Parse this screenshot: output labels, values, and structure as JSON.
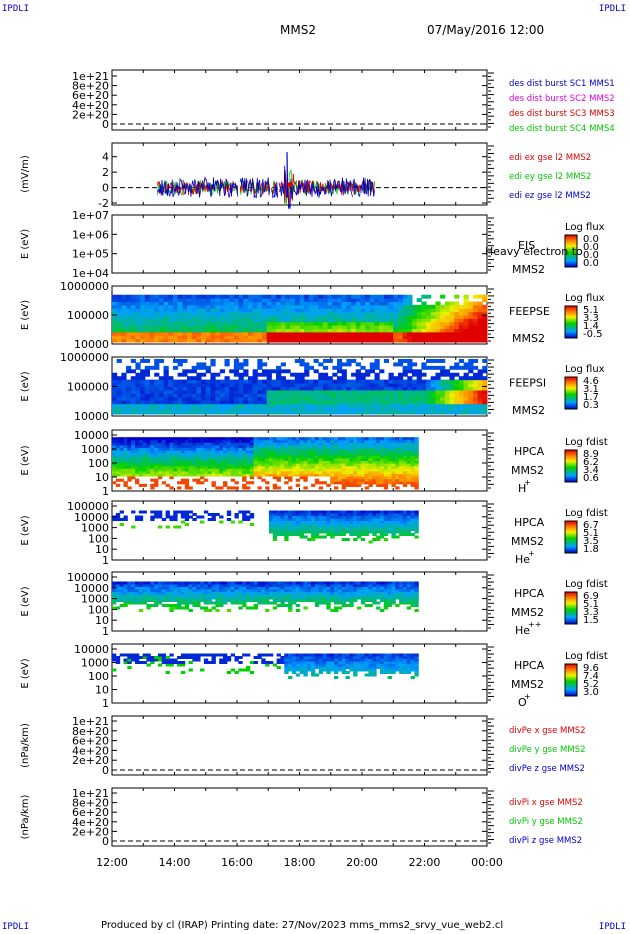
{
  "corners": {
    "tl": "IPDLI",
    "tr": "IPDLI",
    "bl": "IPDLI",
    "br": "IPDLI"
  },
  "header": {
    "mission": "MMS2",
    "date": "07/May/2016 12:00"
  },
  "footer": {
    "text": "Produced by cl (IRAP)   Printing date: 27/Nov/2023   mms_mms2_srvy_vue_web2.cl"
  },
  "colors": {
    "red": "#e00000",
    "green": "#00c800",
    "blue": "#0000c8",
    "magenta": "#e000e0",
    "fg": "#000000"
  },
  "time_axis": {
    "start": "12:00",
    "end": "00:00",
    "ticks": [
      "12:00",
      "14:00",
      "16:00",
      "18:00",
      "20:00",
      "22:00",
      "00:00"
    ]
  },
  "chart_data": [
    {
      "type": "line",
      "ylabel": "",
      "ylim": [
        -2e+20,
        1.2e+21
      ],
      "ticks": [
        "1e+21",
        "8e+20",
        "6e+20",
        "4e+20",
        "2e+20",
        "0"
      ],
      "legend": [
        {
          "text": "des dist burst SC1 MMS1",
          "color": "#0000c8"
        },
        {
          "text": "des dist burst SC2 MMS2",
          "color": "#e000e0"
        },
        {
          "text": "des dist burst SC3 MMS3",
          "color": "#e00000"
        },
        {
          "text": "des dist burst SC4 MMS4",
          "color": "#00c800"
        }
      ],
      "series": [],
      "zero_line": "dashed"
    },
    {
      "type": "line",
      "ylabel": "(mV/m)",
      "ylim": [
        -2,
        5
      ],
      "ticks": [
        "4",
        "2",
        "0",
        "-2"
      ],
      "legend": [
        {
          "text": "edi ex gse l2 MMS2",
          "color": "#e00000"
        },
        {
          "text": "edi ey gse l2 MMS2",
          "color": "#00c800"
        },
        {
          "text": "edi ez gse l2 MMS2",
          "color": "#0000c8"
        }
      ],
      "data_intervals_hours": [
        [
          13.4,
          17.1
        ],
        [
          17.0,
          20.4
        ]
      ],
      "zero_line": "dashed"
    },
    {
      "type": "heatmap",
      "ylabel": "E (eV)",
      "scale": "log",
      "ticks": [
        "1e+07",
        "1e+06",
        "1e+05",
        "1e+04"
      ],
      "right_labels": [
        "EIS",
        "MMS2"
      ],
      "overlap_text": "Heavy electron to",
      "colorbar": {
        "title": "Log flux",
        "ticks": [
          "0.0",
          "0.0",
          "0.0",
          "0.0"
        ]
      }
    },
    {
      "type": "heatmap",
      "ylabel": "E (eV)",
      "scale": "log",
      "ticks": [
        "1000000",
        "100000",
        "10000"
      ],
      "right_labels": [
        "FEEPSE",
        "MMS2"
      ],
      "colorbar": {
        "title": "Log flux",
        "ticks": [
          "5.1",
          "3.3",
          "1.4",
          "-0.5"
        ]
      }
    },
    {
      "type": "heatmap",
      "ylabel": "E (eV)",
      "scale": "log",
      "ticks": [
        "1000000",
        "100000",
        "10000"
      ],
      "right_labels": [
        "FEEPSI",
        "MMS2"
      ],
      "colorbar": {
        "title": "Log flux",
        "ticks": [
          "4.6",
          "3.1",
          "1.7",
          "0.3"
        ]
      }
    },
    {
      "type": "heatmap",
      "ylabel": "E (eV)",
      "scale": "log",
      "ticks": [
        "10000",
        "1000",
        "100",
        "10",
        "1"
      ],
      "right_labels": [
        "HPCA",
        "MMS2",
        "H",
        "+"
      ],
      "colorbar": {
        "title": "Log fdist",
        "ticks": [
          "8.9",
          "6.2",
          "3.4",
          "0.6"
        ]
      }
    },
    {
      "type": "heatmap",
      "ylabel": "E (eV)",
      "scale": "log",
      "ticks": [
        "100000",
        "10000",
        "1000",
        "100",
        "10",
        "1"
      ],
      "right_labels": [
        "HPCA",
        "MMS2",
        "He",
        "+"
      ],
      "colorbar": {
        "title": "Log fdist",
        "ticks": [
          "6.7",
          "5.1",
          "3.5",
          "1.8"
        ]
      }
    },
    {
      "type": "heatmap",
      "ylabel": "E (eV)",
      "scale": "log",
      "ticks": [
        "100000",
        "10000",
        "1000",
        "100",
        "10",
        "1"
      ],
      "right_labels": [
        "HPCA",
        "MMS2",
        "He",
        "++"
      ],
      "colorbar": {
        "title": "Log fdist",
        "ticks": [
          "6.9",
          "5.1",
          "3.3",
          "1.5"
        ]
      }
    },
    {
      "type": "heatmap",
      "ylabel": "E (eV)",
      "scale": "log",
      "ticks": [
        "10000",
        "1000",
        "100",
        "10",
        "1"
      ],
      "right_labels": [
        "HPCA",
        "MMS2",
        "O",
        "+"
      ],
      "colorbar": {
        "title": "Log fdist",
        "ticks": [
          "9.6",
          "7.4",
          "5.2",
          "3.0"
        ]
      }
    },
    {
      "type": "line",
      "ylabel": "(nPa/km)",
      "ylim": [
        -2e+20,
        1.2e+21
      ],
      "ticks": [
        "1e+21",
        "8e+20",
        "6e+20",
        "4e+20",
        "2e+20",
        "0"
      ],
      "legend": [
        {
          "text": "divPe x gse MMS2",
          "color": "#e00000"
        },
        {
          "text": "divPe y gse MMS2",
          "color": "#00c800"
        },
        {
          "text": "divPe z gse MMS2",
          "color": "#0000c8"
        }
      ],
      "series": [],
      "zero_line": "dashed"
    },
    {
      "type": "line",
      "ylabel": "(nPa/km)",
      "ylim": [
        -2e+20,
        1.2e+21
      ],
      "ticks": [
        "1e+21",
        "8e+20",
        "6e+20",
        "4e+20",
        "2e+20",
        "0"
      ],
      "legend": [
        {
          "text": "divPi x gse MMS2",
          "color": "#e00000"
        },
        {
          "text": "divPi y gse MMS2",
          "color": "#00c800"
        },
        {
          "text": "divPi z gse MMS2",
          "color": "#0000c8"
        }
      ],
      "series": [],
      "zero_line": "dashed"
    }
  ]
}
